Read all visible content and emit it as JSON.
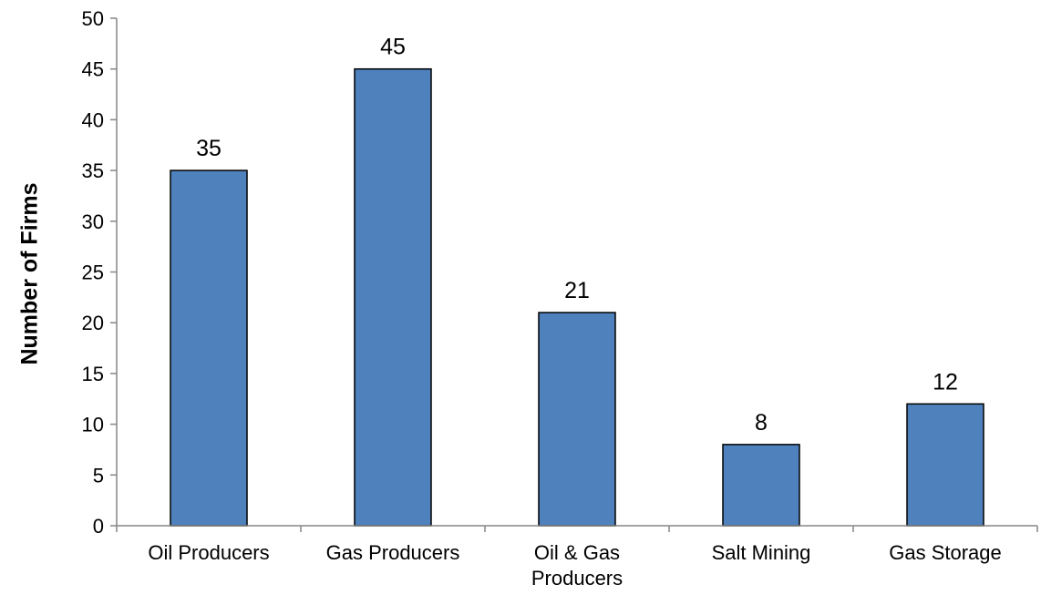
{
  "chart_data": {
    "type": "bar",
    "title": "",
    "xlabel": "",
    "ylabel": "Number of Firms",
    "categories": [
      "Oil Producers",
      "Gas Producers",
      "Oil & Gas Producers",
      "Salt Mining",
      "Gas Storage"
    ],
    "category_label_lines": [
      [
        "Oil Producers"
      ],
      [
        "Gas Producers"
      ],
      [
        "Oil & Gas",
        "Producers"
      ],
      [
        "Salt Mining"
      ],
      [
        "Gas Storage"
      ]
    ],
    "values": [
      35,
      45,
      21,
      8,
      12
    ],
    "data_labels": [
      "35",
      "45",
      "21",
      "8",
      "12"
    ],
    "ylim": [
      0,
      50
    ],
    "yticks": [
      0,
      5,
      10,
      15,
      20,
      25,
      30,
      35,
      40,
      45,
      50
    ],
    "grid": false,
    "legend": "none",
    "bar_color": "#4F81BD",
    "bar_edge_color": "#000000"
  }
}
